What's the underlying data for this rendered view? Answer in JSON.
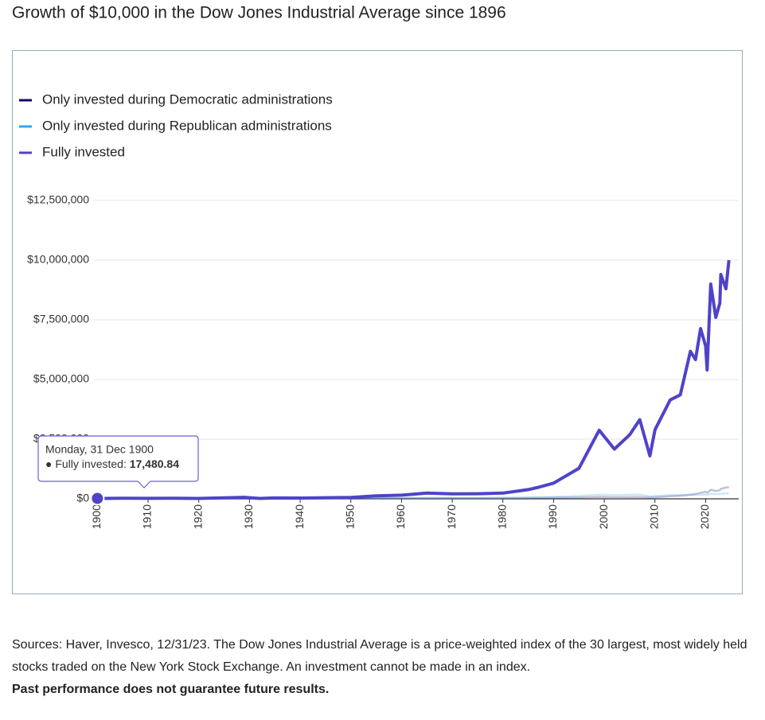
{
  "chart_data": {
    "type": "line",
    "title": "Growth of $10,000 in the Dow Jones Industrial Average since 1896",
    "x": [
      1900,
      1905,
      1910,
      1915,
      1920,
      1925,
      1929,
      1932,
      1935,
      1940,
      1945,
      1950,
      1955,
      1960,
      1965,
      1970,
      1975,
      1980,
      1985,
      1987,
      1990,
      1995,
      1999,
      2002,
      2005,
      2007,
      2009,
      2010,
      2013,
      2015,
      2017,
      2018,
      2019,
      2020,
      2020.3,
      2021,
      2022,
      2022.8,
      2023,
      2024,
      2024.6
    ],
    "series": [
      {
        "name": "Only invested during Democratic administrations",
        "color": "#0e0b5e",
        "values": [
          10000,
          11000,
          10500,
          12000,
          12000,
          12000,
          12000,
          11000,
          16000,
          16000,
          20000,
          22000,
          22000,
          25000,
          35000,
          33000,
          33000,
          38000,
          40000,
          45000,
          50000,
          60000,
          80000,
          70000,
          70000,
          72000,
          60000,
          65000,
          110000,
          130000,
          170000,
          200000,
          250000,
          300000,
          250000,
          380000,
          330000,
          360000,
          420000,
          470000,
          490000
        ]
      },
      {
        "name": "Only invested during Republican administrations",
        "color": "#2ea8ef",
        "values": [
          10000,
          14000,
          12000,
          14000,
          12000,
          25000,
          40000,
          10000,
          10000,
          9500,
          9500,
          12000,
          25000,
          30000,
          35000,
          30000,
          30000,
          32000,
          50000,
          60000,
          80000,
          120000,
          170000,
          160000,
          170000,
          175000,
          110000,
          120000,
          150000,
          160000,
          170000,
          165000,
          170000,
          175000,
          160000,
          210000,
          200000,
          205000,
          215000,
          225000,
          240000
        ]
      },
      {
        "name": "Fully invested",
        "color": "#4f43c8",
        "values": [
          17480.84,
          24000,
          20000,
          25000,
          18000,
          39000,
          62000,
          15000,
          36000,
          33000,
          48000,
          59000,
          122000,
          154000,
          242000,
          210000,
          213000,
          241000,
          387000,
          485000,
          658000,
          1279000,
          2874000,
          2085000,
          2680000,
          3316000,
          1800000,
          2894000,
          4144000,
          4356000,
          6180000,
          5832000,
          7134000,
          6400000,
          5400000,
          9000000,
          7600000,
          8200000,
          9400000,
          8800000,
          10000000
        ]
      }
    ],
    "xlim": [
      1899,
      2027
    ],
    "xticks": [
      1900,
      1910,
      1920,
      1930,
      1940,
      1950,
      1960,
      1970,
      1980,
      1990,
      2000,
      2010,
      2020
    ],
    "ylim": [
      0,
      12500000
    ],
    "yticks": [
      {
        "value": 0,
        "label": "$0"
      },
      {
        "value": 2500000,
        "label": "$2,500,000"
      },
      {
        "value": 5000000,
        "label": "$5,000,000"
      },
      {
        "value": 7500000,
        "label": "$7,500,000"
      },
      {
        "value": 10000000,
        "label": "$10,000,000"
      },
      {
        "value": 12500000,
        "label": "$12,500,000"
      }
    ],
    "grid": true,
    "legend": "top-left",
    "tooltip": {
      "date": "Monday, 31 Dec 1900",
      "label": "● Fully invested:",
      "value_label": "17,480.84"
    }
  },
  "footer": {
    "sources": "Sources: Haver, Invesco, 12/31/23. The Dow Jones Industrial Average is a price-weighted index of the 30 largest, most widely held stocks traded on the New York Stock Exchange. An investment cannot be made in an index.",
    "disclaimer": "Past performance does not guarantee future results."
  }
}
